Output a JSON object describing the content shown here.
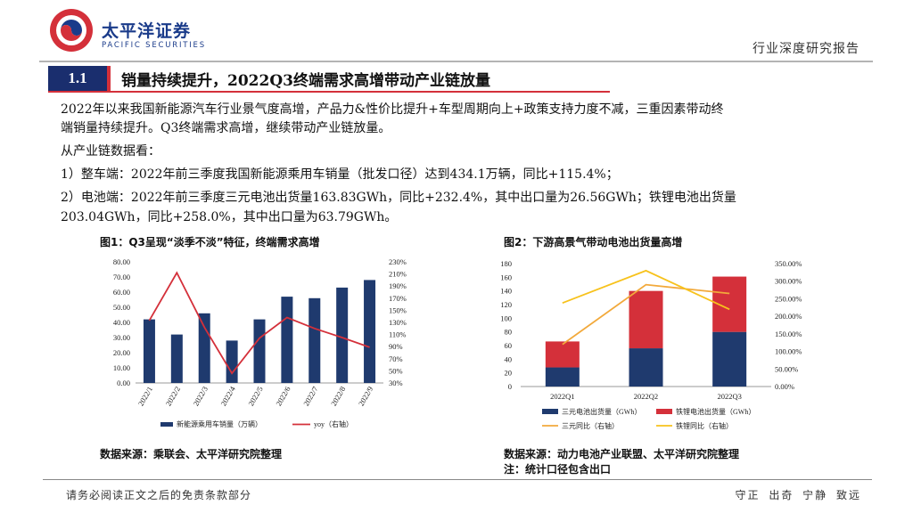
{
  "header": {
    "logo_name": "太平洋证券",
    "logo_sub": "PACIFIC SECURITIES",
    "report_type": "行业深度研究报告",
    "colors": {
      "brand_blue": "#1a3b8a",
      "brand_red": "#d4303a"
    }
  },
  "section": {
    "number": "1.1",
    "title": "销量持续提升，2022Q3终端需求高增带动产业链放量"
  },
  "body": {
    "p1_line1": "2022年以来我国新能源汽车行业景气度高增，产品力&性价比提升+车型周期向上+政策支持力度不减，三重因素带动终",
    "p1_line2": "端销量持续提升。Q3终端需求高增，继续带动产业链放量。",
    "p2": "从产业链数据看：",
    "p3": "1）整车端：2022年前三季度我国新能源乘用车销量（批发口径）达到434.1万辆，同比+115.4%；",
    "p4_line1": "2）电池端：2022年前三季度三元电池出货量163.83GWh，同比+232.4%，其中出口量为26.56GWh；铁锂电池出货量",
    "p4_line2": "203.04GWh，同比+258.0%，其中出口量为63.79GWh。"
  },
  "figure1": {
    "title": "图1：Q3呈现“淡季不淡”特征，终端需求高增",
    "source": "数据来源：乘联会、太平洋研究院整理",
    "legend": {
      "bar": "新能源乘用车销量（万辆）",
      "line": "yoy（右轴）"
    },
    "left_ticks": [
      "0.00",
      "10.00",
      "20.00",
      "30.00",
      "40.00",
      "50.00",
      "60.00",
      "70.00",
      "80.00"
    ],
    "right_ticks": [
      "30%",
      "50%",
      "70%",
      "90%",
      "110%",
      "130%",
      "150%",
      "170%",
      "190%",
      "210%",
      "230%"
    ]
  },
  "figure2": {
    "title": "图2：下游高景气带动电池出货量高增",
    "source": "数据来源：动力电池产业联盟、太平洋研究院整理",
    "note": "注：统计口径包含出口",
    "legend": {
      "bar1": "三元电池出货量（GWh）",
      "bar2": "铁锂电池出货量（GWh）",
      "line1": "三元同比（右轴）",
      "line2": "铁锂同比（右轴）"
    },
    "left_ticks": [
      "0",
      "20",
      "40",
      "60",
      "80",
      "100",
      "120",
      "140",
      "160",
      "180"
    ],
    "right_ticks": [
      "0.00%",
      "50.00%",
      "100.00%",
      "150.00%",
      "200.00%",
      "250.00%",
      "300.00%",
      "350.00%"
    ]
  },
  "chart_data": [
    {
      "type": "bar",
      "categories": [
        "2022/1",
        "2022/2",
        "2022/3",
        "2022/4",
        "2022/5",
        "2022/6",
        "2022/7",
        "2022/8",
        "2022/9"
      ],
      "series": [
        {
          "name": "新能源乘用车销量（万辆）",
          "type": "bar",
          "axis": "left",
          "color": "#1f3a6e",
          "values": [
            42,
            32,
            46,
            28,
            42,
            57,
            56,
            63,
            68
          ]
        },
        {
          "name": "yoy（右轴）",
          "type": "line",
          "axis": "right",
          "color": "#d4303a",
          "values": [
            1.33,
            2.12,
            1.22,
            0.46,
            1.04,
            1.38,
            1.2,
            1.05,
            0.89
          ]
        }
      ],
      "ylim": [
        0,
        80
      ],
      "y2lim": [
        0.3,
        2.3
      ],
      "legend": "bottom"
    },
    {
      "type": "bar",
      "stacked": true,
      "categories": [
        "2022Q1",
        "2022Q2",
        "2022Q3"
      ],
      "series": [
        {
          "name": "三元电池出货量（GWh）",
          "type": "bar",
          "axis": "left",
          "color": "#1f3a6e",
          "values": [
            28,
            56,
            80
          ]
        },
        {
          "name": "铁锂电池出货量（GWh）",
          "type": "bar",
          "axis": "left",
          "color": "#d4303a",
          "values": [
            38,
            84,
            81
          ]
        },
        {
          "name": "三元同比（右轴）",
          "type": "line",
          "axis": "right",
          "color": "#f2a93b",
          "values": [
            1.2,
            2.9,
            2.65
          ]
        },
        {
          "name": "铁锂同比（右轴）",
          "type": "line",
          "axis": "right",
          "color": "#f7c21c",
          "values": [
            2.38,
            3.3,
            2.2
          ]
        }
      ],
      "ylim": [
        0,
        180
      ],
      "y2lim": [
        0,
        3.5
      ],
      "legend": "bottom"
    }
  ],
  "footer": {
    "disclaimer": "请务必阅读正文之后的免责条款部分",
    "motto": "守正 出奇 宁静 致远"
  }
}
